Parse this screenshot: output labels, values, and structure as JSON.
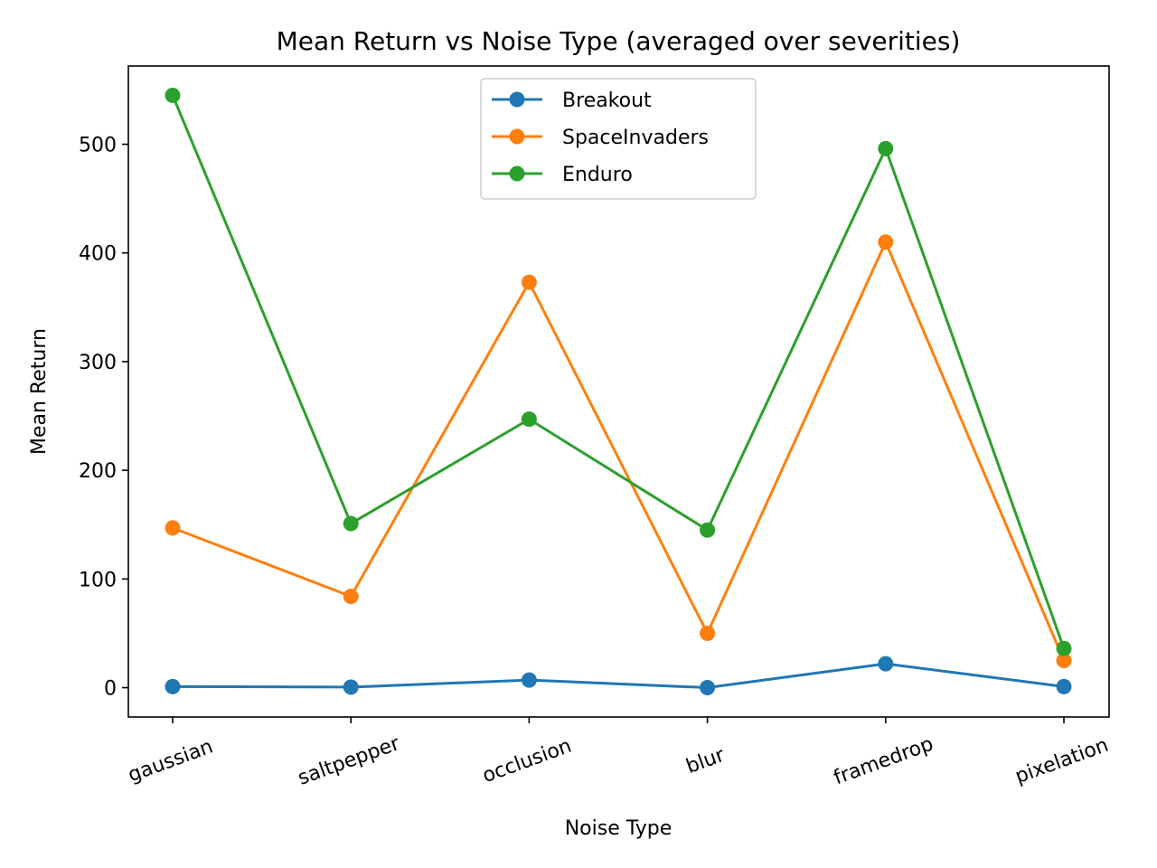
{
  "chart_data": {
    "type": "line",
    "title": "Mean Return vs Noise Type (averaged over severities)",
    "xlabel": "Noise Type",
    "ylabel": "Mean Return",
    "categories": [
      "gaussian",
      "saltpepper",
      "occlusion",
      "blur",
      "framedrop",
      "pixelation"
    ],
    "ylim": [
      -27,
      572
    ],
    "yticks": [
      0,
      100,
      200,
      300,
      400,
      500
    ],
    "grid": false,
    "legend_position": "upper center",
    "series": [
      {
        "name": "Breakout",
        "color": "#1f77b4",
        "values": [
          1,
          0.5,
          7,
          0,
          22,
          1
        ]
      },
      {
        "name": "SpaceInvaders",
        "color": "#ff7f0e",
        "values": [
          147,
          84,
          373,
          50,
          410,
          25
        ]
      },
      {
        "name": "Enduro",
        "color": "#2ca02c",
        "values": [
          545,
          151,
          247,
          145,
          496,
          36
        ]
      }
    ]
  }
}
